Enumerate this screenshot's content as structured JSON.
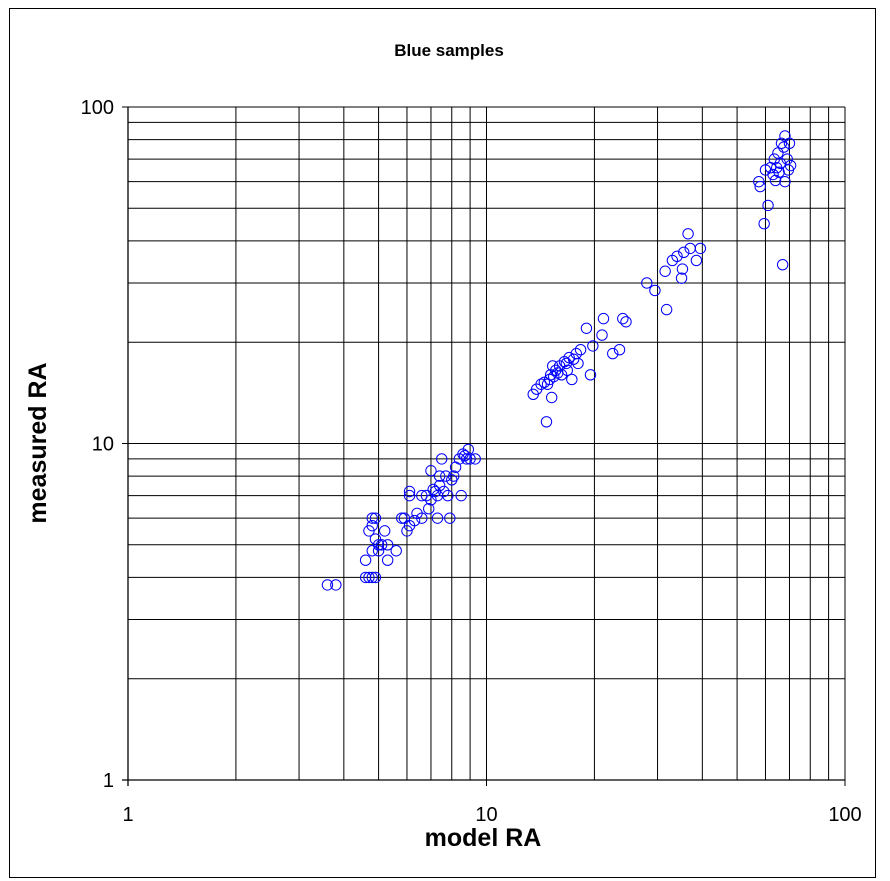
{
  "chart_data": {
    "type": "scatter",
    "title": "Blue samples",
    "xlabel": "model RA",
    "ylabel": "measured RA",
    "xscale": "log",
    "yscale": "log",
    "xlim": [
      1,
      100
    ],
    "ylim": [
      1,
      100
    ],
    "xticks": [
      "1",
      "10",
      "100"
    ],
    "yticks": [
      "1",
      "10",
      "100"
    ],
    "grid": true,
    "legend": "none",
    "marker": "open circle",
    "marker_color": "#0000ff",
    "series": [
      {
        "points": [
          [
            3.6,
            3.8
          ],
          [
            3.8,
            3.8
          ],
          [
            4.6,
            4.0
          ],
          [
            4.7,
            4.0
          ],
          [
            4.8,
            4.0
          ],
          [
            4.9,
            4.0
          ],
          [
            4.6,
            4.5
          ],
          [
            4.8,
            4.8
          ],
          [
            5.0,
            4.8
          ],
          [
            5.3,
            4.5
          ],
          [
            5.6,
            4.8
          ],
          [
            4.7,
            5.5
          ],
          [
            4.8,
            5.7
          ],
          [
            4.8,
            6.0
          ],
          [
            4.9,
            6.0
          ],
          [
            4.9,
            5.2
          ],
          [
            5.0,
            5.0
          ],
          [
            5.1,
            5.0
          ],
          [
            5.3,
            5.0
          ],
          [
            5.2,
            5.5
          ],
          [
            5.8,
            6.0
          ],
          [
            5.9,
            6.0
          ],
          [
            6.0,
            5.5
          ],
          [
            6.1,
            5.7
          ],
          [
            6.1,
            7.0
          ],
          [
            6.1,
            7.2
          ],
          [
            6.3,
            5.9
          ],
          [
            6.4,
            6.2
          ],
          [
            6.6,
            6.0
          ],
          [
            6.6,
            7.0
          ],
          [
            6.8,
            7.0
          ],
          [
            6.9,
            6.4
          ],
          [
            7.0,
            6.8
          ],
          [
            7.1,
            7.3
          ],
          [
            7.2,
            7.2
          ],
          [
            7.3,
            6.0
          ],
          [
            7.3,
            7.0
          ],
          [
            7.4,
            7.5
          ],
          [
            7.4,
            8.0
          ],
          [
            7.5,
            9.0
          ],
          [
            7.6,
            7.2
          ],
          [
            7.7,
            8.0
          ],
          [
            7.8,
            7.0
          ],
          [
            7.9,
            6.0
          ],
          [
            8.0,
            7.8
          ],
          [
            8.1,
            8.0
          ],
          [
            8.2,
            8.5
          ],
          [
            8.4,
            9.0
          ],
          [
            8.5,
            7.0
          ],
          [
            8.6,
            9.3
          ],
          [
            8.7,
            9.2
          ],
          [
            8.8,
            9.0
          ],
          [
            8.9,
            9.6
          ],
          [
            9.0,
            9.0
          ],
          [
            9.3,
            9.0
          ],
          [
            7.0,
            8.3
          ],
          [
            13.5,
            14.0
          ],
          [
            13.8,
            14.5
          ],
          [
            14.2,
            15.0
          ],
          [
            14.5,
            15.2
          ],
          [
            14.7,
            11.6
          ],
          [
            14.8,
            15.0
          ],
          [
            15.0,
            15.5
          ],
          [
            15.1,
            16.0
          ],
          [
            15.2,
            13.7
          ],
          [
            15.4,
            15.8
          ],
          [
            15.6,
            16.5
          ],
          [
            15.8,
            16.2
          ],
          [
            16.0,
            17.0
          ],
          [
            16.2,
            16.0
          ],
          [
            16.5,
            17.5
          ],
          [
            16.7,
            17.3
          ],
          [
            17.0,
            18.0
          ],
          [
            17.3,
            15.5
          ],
          [
            17.5,
            17.8
          ],
          [
            17.8,
            18.5
          ],
          [
            18.0,
            17.3
          ],
          [
            18.3,
            19.0
          ],
          [
            19.0,
            22.0
          ],
          [
            19.5,
            16.0
          ],
          [
            19.8,
            19.5
          ],
          [
            21.0,
            21.0
          ],
          [
            21.2,
            23.5
          ],
          [
            22.5,
            18.5
          ],
          [
            23.5,
            19.0
          ],
          [
            24.0,
            23.5
          ],
          [
            24.5,
            23.0
          ],
          [
            15.3,
            17.0
          ],
          [
            16.8,
            16.5
          ],
          [
            28.0,
            30.0
          ],
          [
            29.5,
            28.5
          ],
          [
            31.5,
            32.5
          ],
          [
            31.8,
            25.0
          ],
          [
            33.0,
            35.0
          ],
          [
            34.0,
            36.0
          ],
          [
            35.0,
            31.0
          ],
          [
            35.2,
            33.0
          ],
          [
            35.5,
            37.0
          ],
          [
            36.5,
            42.0
          ],
          [
            37.0,
            38.0
          ],
          [
            38.5,
            35.0
          ],
          [
            39.5,
            38.0
          ],
          [
            57.5,
            60.0
          ],
          [
            58.0,
            58.0
          ],
          [
            59.5,
            45.0
          ],
          [
            60.0,
            65.0
          ],
          [
            61.0,
            51.0
          ],
          [
            62.0,
            66.0
          ],
          [
            63.0,
            63.0
          ],
          [
            64.0,
            60.5
          ],
          [
            64.5,
            66.0
          ],
          [
            65.0,
            73.0
          ],
          [
            65.5,
            64.0
          ],
          [
            66.5,
            78.0
          ],
          [
            67.5,
            76.0
          ],
          [
            67.0,
            34.0
          ],
          [
            68.0,
            82.0
          ],
          [
            68.0,
            60.0
          ],
          [
            69.0,
            70.0
          ],
          [
            69.5,
            65.0
          ],
          [
            70.0,
            78.0
          ],
          [
            70.5,
            67.0
          ],
          [
            66.0,
            68.0
          ],
          [
            63.5,
            70.0
          ]
        ]
      }
    ]
  }
}
